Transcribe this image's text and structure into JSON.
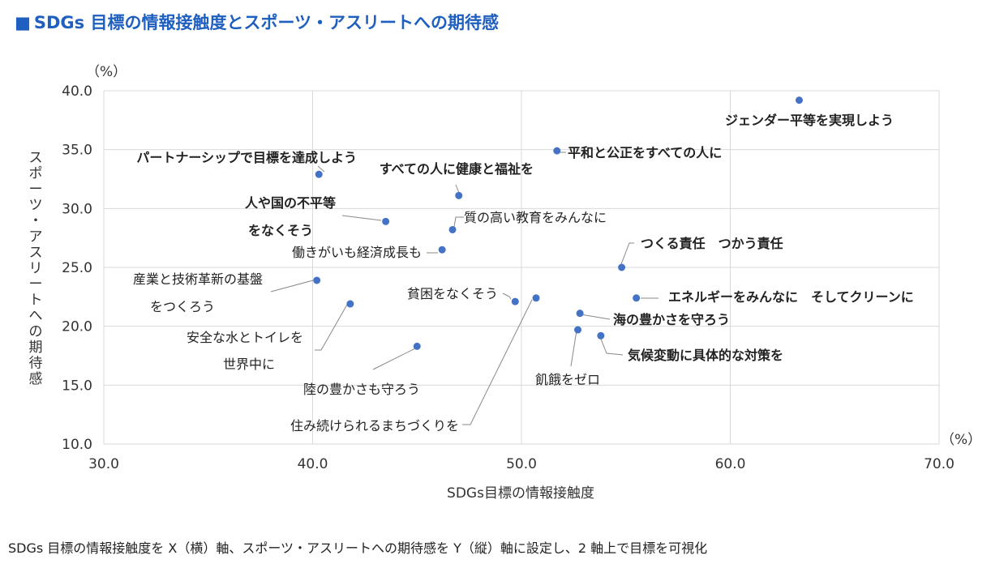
{
  "title": "SDGs 目標の情報接触度とスポーツ・アスリートへの期待感",
  "title_marker": "■",
  "caption": "SDGs 目標の情報接触度を X（横）軸、スポーツ・アスリートへの期待感を Y（縦）軸に設定し、2 軸上で目標を可視化",
  "colors": {
    "title": "#1f5fbf",
    "point": "#4472c4",
    "grid": "#d9d9d9"
  },
  "chart_data": {
    "type": "scatter",
    "xlabel": "SDGs目標の情報接触度",
    "ylabel": "スポーツ・アスリートへの期待感",
    "x_unit": "（%）",
    "y_unit": "（%）",
    "xlim": [
      30,
      70
    ],
    "ylim": [
      10,
      40
    ],
    "xticks": [
      "30.0",
      "40.0",
      "50.0",
      "60.0",
      "70.0"
    ],
    "yticks": [
      "10.0",
      "15.0",
      "20.0",
      "25.0",
      "30.0",
      "35.0",
      "40.0"
    ],
    "grid": true,
    "points": [
      {
        "x": 63.3,
        "y": 39.2,
        "lines": [
          "ジェンダー平等を実現しよう"
        ],
        "bold": true
      },
      {
        "x": 51.7,
        "y": 34.9,
        "lines": [
          "平和と公正をすべての人に"
        ],
        "bold": true
      },
      {
        "x": 40.3,
        "y": 32.9,
        "lines": [
          "パートナーシップで目標を達成しよう"
        ],
        "bold": true
      },
      {
        "x": 47.0,
        "y": 31.1,
        "lines": [
          "すべての人に健康と福祉を"
        ],
        "bold": true
      },
      {
        "x": 43.5,
        "y": 28.9,
        "lines": [
          "人や国の不平等",
          "をなくそう"
        ],
        "bold": true
      },
      {
        "x": 46.7,
        "y": 28.2,
        "lines": [
          "質の高い教育をみんなに"
        ],
        "bold": false
      },
      {
        "x": 46.2,
        "y": 26.5,
        "lines": [
          "働きがいも経済成長も"
        ],
        "bold": false
      },
      {
        "x": 54.8,
        "y": 25.0,
        "lines": [
          "つくる責任　つかう責任"
        ],
        "bold": true
      },
      {
        "x": 40.2,
        "y": 23.9,
        "lines": [
          "産業と技術革新の基盤",
          "をつくろう"
        ],
        "bold": false
      },
      {
        "x": 55.5,
        "y": 22.4,
        "lines": [
          "エネルギーをみんなに　そしてクリーンに"
        ],
        "bold": true
      },
      {
        "x": 49.7,
        "y": 22.1,
        "lines": [
          "貧困をなくそう"
        ],
        "bold": false
      },
      {
        "x": 50.7,
        "y": 22.4,
        "lines": [
          "住み続けられるまちづくりを"
        ],
        "bold": false
      },
      {
        "x": 41.8,
        "y": 21.9,
        "lines": [
          "安全な水とトイレを",
          "世界中に"
        ],
        "bold": false
      },
      {
        "x": 52.8,
        "y": 21.1,
        "lines": [
          "海の豊かさを守ろう"
        ],
        "bold": true
      },
      {
        "x": 52.7,
        "y": 19.7,
        "lines": [
          "飢餓をゼロ"
        ],
        "bold": false
      },
      {
        "x": 53.8,
        "y": 19.2,
        "lines": [
          "気候変動に具体的な対策を"
        ],
        "bold": true
      },
      {
        "x": 45.0,
        "y": 18.3,
        "lines": [
          "陸の豊かさも守ろう"
        ],
        "bold": false
      }
    ]
  }
}
